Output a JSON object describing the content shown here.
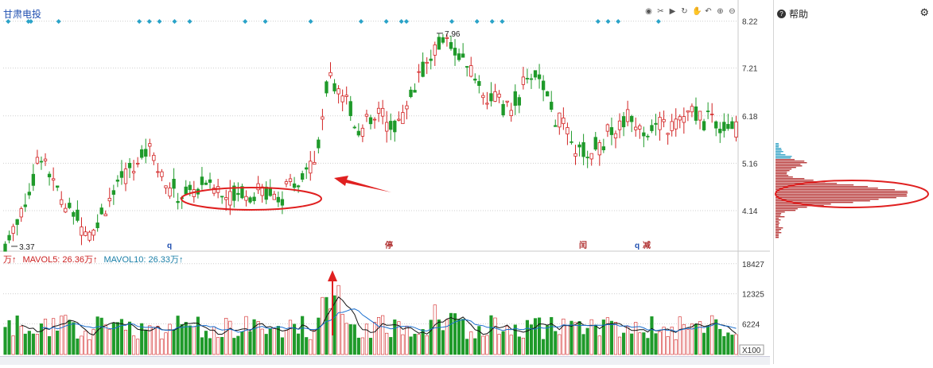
{
  "stock": {
    "name": "甘肃电投"
  },
  "toolbar": {
    "icons": [
      "eye-icon",
      "scissors-icon",
      "play-icon",
      "refresh-icon",
      "hand-icon",
      "undo-icon",
      "zoom-in-icon",
      "zoom-out-icon"
    ]
  },
  "side_panel": {
    "title": "帮助"
  },
  "volume_legend": {
    "unit": "万↑",
    "ma5": "MAVOL5: 26.36万↑",
    "ma10": "MAVOL10: 26.33万↑"
  },
  "colors": {
    "up": "#d22222",
    "down": "#1f9a2a",
    "ma5": "#111111",
    "ma10": "#1a6fcf",
    "annotation": "#e02020",
    "signal": "#2aa3c8"
  },
  "markers": {
    "q1": "q",
    "q2": "q",
    "tag1": "停",
    "tag2": "闰",
    "tag3": "减"
  },
  "chart_data": [
    {
      "type": "candlestick",
      "title": "甘肃电投",
      "y_ticks": [
        8.22,
        7.21,
        6.18,
        5.16,
        4.14
      ],
      "ylim": [
        3.3,
        8.3
      ],
      "annotations": [
        "7.96",
        "3.37"
      ],
      "x_count": 183,
      "up_color": "#d22222",
      "down_color": "#1f9a2a"
    },
    {
      "type": "bar",
      "title": "MAVOL",
      "y_ticks": [
        18427,
        12325,
        6224
      ],
      "ylim": [
        0,
        20000
      ],
      "unit_label": "X100",
      "series": [
        {
          "name": "MAVOL5",
          "value": "26.36万"
        },
        {
          "name": "MAVOL10",
          "value": "26.33万"
        }
      ]
    }
  ]
}
